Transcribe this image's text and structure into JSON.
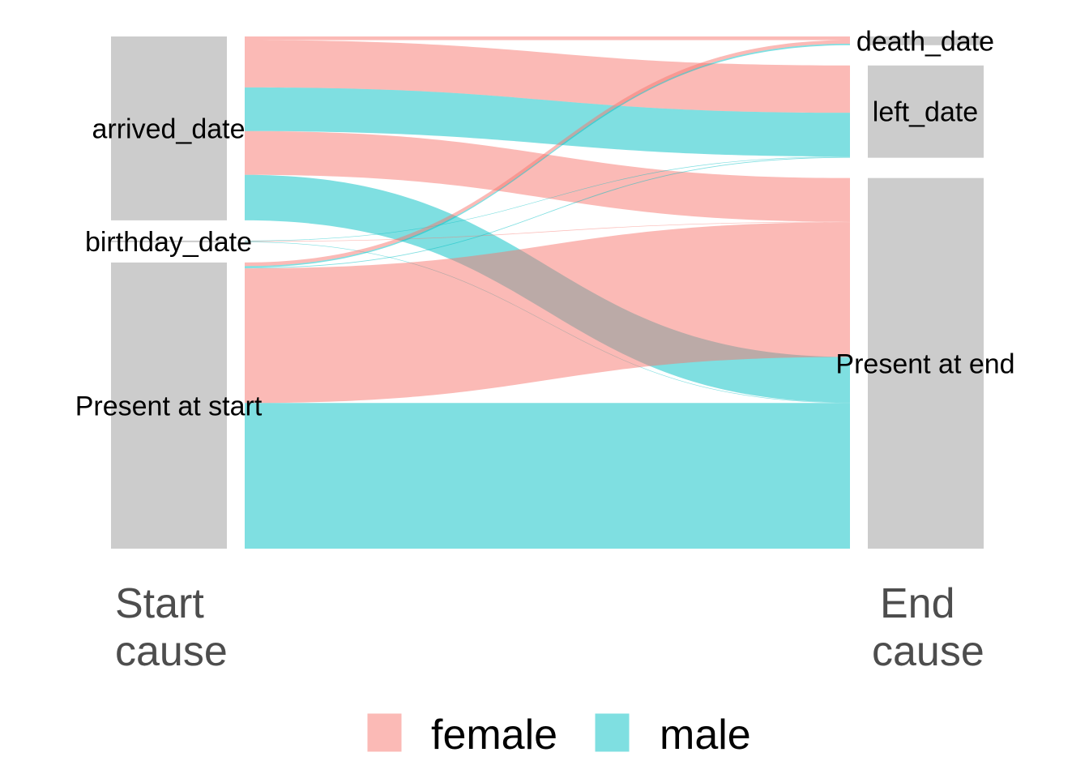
{
  "chart_data": {
    "type": "alluvial",
    "axes": [
      {
        "label_line1": "Start",
        "label_line2": "cause",
        "strata": [
          "arrived_date",
          "birthday_date",
          "Present at start"
        ]
      },
      {
        "label_line1": "End",
        "label_line2": "cause",
        "strata": [
          "death_date",
          "left_date",
          "Present at end"
        ]
      }
    ],
    "groups": [
      {
        "name": "female",
        "color": "#F8766D"
      },
      {
        "name": "male",
        "color": "#00BFC4"
      }
    ],
    "flows": [
      {
        "from": "arrived_date",
        "to": "death_date",
        "group": "female",
        "value": 1
      },
      {
        "from": "arrived_date",
        "to": "left_date",
        "group": "female",
        "value": 13
      },
      {
        "from": "arrived_date",
        "to": "Present at end",
        "group": "female",
        "value": 12
      },
      {
        "from": "arrived_date",
        "to": "left_date",
        "group": "male",
        "value": 12
      },
      {
        "from": "arrived_date",
        "to": "Present at end",
        "group": "male",
        "value": 12.5
      },
      {
        "from": "birthday_date",
        "to": "left_date",
        "group": "male",
        "value": 0.15
      },
      {
        "from": "birthday_date",
        "to": "Present at end",
        "group": "female",
        "value": 0.15
      },
      {
        "from": "birthday_date",
        "to": "Present at end",
        "group": "male",
        "value": 0.15
      },
      {
        "from": "Present at start",
        "to": "death_date",
        "group": "female",
        "value": 1
      },
      {
        "from": "Present at start",
        "to": "Present at end",
        "group": "female",
        "value": 37
      },
      {
        "from": "Present at start",
        "to": "death_date",
        "group": "male",
        "value": 0.4
      },
      {
        "from": "Present at start",
        "to": "left_date",
        "group": "male",
        "value": 0.2
      },
      {
        "from": "Present at start",
        "to": "Present at end",
        "group": "male",
        "value": 40
      }
    ]
  }
}
